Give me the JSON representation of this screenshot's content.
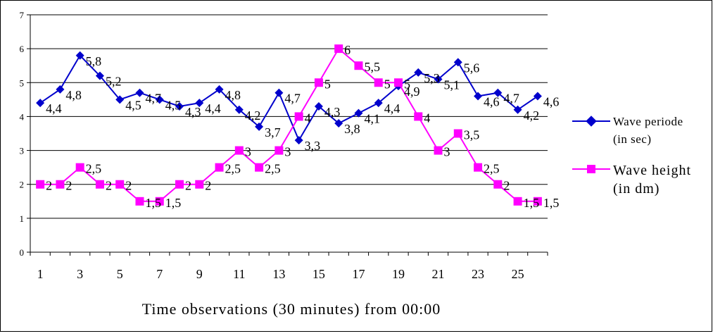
{
  "chart_data": {
    "type": "line",
    "title": "",
    "xlabel": "Time observations (30 minutes) from 00:00",
    "ylabel": "",
    "x": [
      1,
      2,
      3,
      4,
      5,
      6,
      7,
      8,
      9,
      10,
      11,
      12,
      13,
      14,
      15,
      16,
      17,
      18,
      19,
      20,
      21,
      22,
      23,
      24,
      25,
      26
    ],
    "x_tick_labels": [
      "1",
      "3",
      "5",
      "7",
      "9",
      "11",
      "13",
      "15",
      "17",
      "19",
      "21",
      "23",
      "25"
    ],
    "y_tick_labels": [
      "0",
      "1",
      "2",
      "3",
      "4",
      "5",
      "6",
      "7"
    ],
    "ylim": [
      0,
      7
    ],
    "grid": "horizontal",
    "legend_position": "right",
    "series": [
      {
        "name_line1": "Wave periode",
        "name_line2": "(in sec)",
        "color": "#0000cc",
        "marker": "diamond",
        "values": [
          4.4,
          4.8,
          5.8,
          5.2,
          4.5,
          4.7,
          4.5,
          4.3,
          4.4,
          4.8,
          4.2,
          3.7,
          4.7,
          3.3,
          4.3,
          3.8,
          4.1,
          4.4,
          4.9,
          5.3,
          5.1,
          5.6,
          4.6,
          4.7,
          4.2,
          4.6
        ],
        "labels": [
          "4,4",
          "4,8",
          "5,8",
          "5,2",
          "4,5",
          "4,7",
          "4,5",
          "4,3",
          "4,4",
          "4,8",
          "4,2",
          "3,7",
          "4,7",
          "3,3",
          "4,3",
          "3,8",
          "4,1",
          "4,4",
          "4,9",
          "5,3",
          "5,1",
          "5,6",
          "4,6",
          "4,7",
          "4,2",
          "4,6"
        ]
      },
      {
        "name_line1": "Wave height",
        "name_line2": "(in dm)",
        "color": "#ff00ff",
        "marker": "square",
        "values": [
          2,
          2,
          2.5,
          2,
          2,
          1.5,
          1.5,
          2,
          2,
          2.5,
          3,
          2.5,
          3,
          4,
          5,
          6,
          5.5,
          5,
          5,
          4,
          3,
          3.5,
          2.5,
          2,
          1.5,
          1.5
        ],
        "labels": [
          "2",
          "2",
          "2,5",
          "2",
          "2",
          "1,5",
          "1,5",
          "2",
          "2",
          "2,5",
          "3",
          "2,5",
          "3",
          "4",
          "5",
          "6",
          "5,5",
          "5",
          "5",
          "4",
          "3",
          "3,5",
          "2,5",
          "2",
          "1,5",
          "1,5"
        ]
      }
    ]
  }
}
